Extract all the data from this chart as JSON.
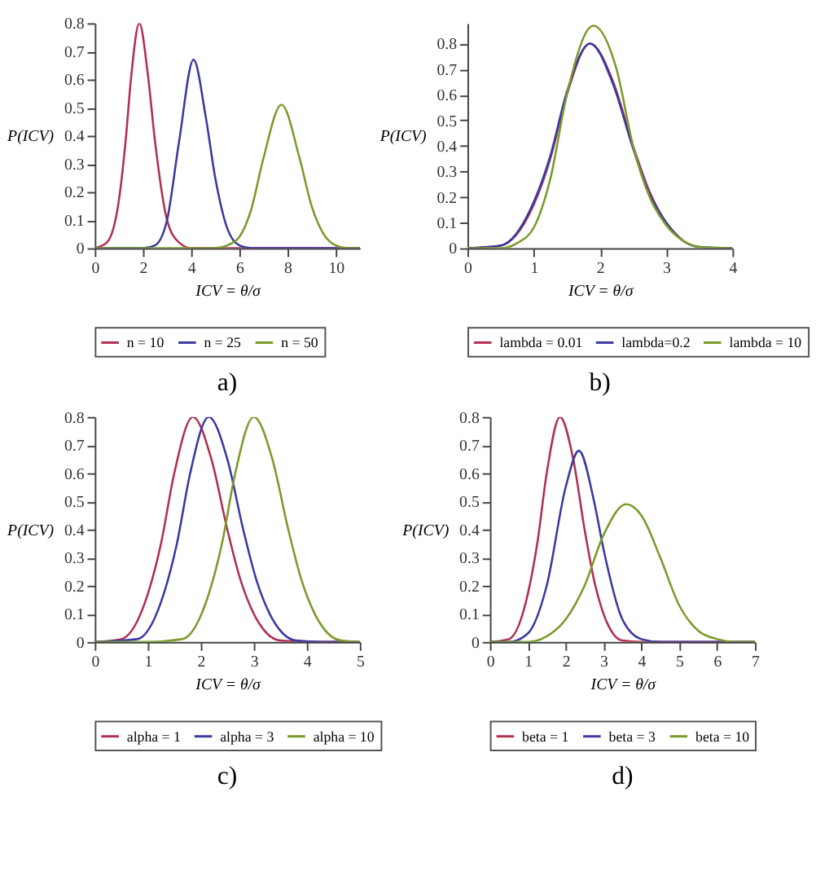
{
  "chart_data": [
    {
      "type": "line",
      "title": "a)",
      "xlabel": "ICV = θ/σ",
      "ylabel": "P(ICV)",
      "xlim": [
        0,
        11
      ],
      "xticks": [
        0,
        2,
        4,
        6,
        8,
        10
      ],
      "ylim": [
        0,
        0.8
      ],
      "yticks": [
        0,
        0.1,
        0.2,
        0.3,
        0.4,
        0.5,
        0.6,
        0.7,
        0.8
      ],
      "legend": "bottom",
      "grid": false,
      "marker": "none",
      "line_style": "solid",
      "series": [
        {
          "name": "n = 10",
          "color": "#b03050",
          "x": [
            0,
            0.5,
            1,
            1.3,
            1.5,
            1.85,
            2.2,
            2.5,
            3,
            3.5,
            4,
            11
          ],
          "values": [
            0,
            0.02,
            0.17,
            0.4,
            0.6,
            0.8,
            0.62,
            0.38,
            0.1,
            0.02,
            0,
            0
          ]
        },
        {
          "name": "n = 25",
          "color": "#3a3aa0",
          "x": [
            0,
            2,
            2.5,
            3,
            3.5,
            4.1,
            4.6,
            5,
            5.5,
            6,
            6.5,
            11
          ],
          "values": [
            0,
            0,
            0.01,
            0.1,
            0.38,
            0.67,
            0.47,
            0.25,
            0.07,
            0.01,
            0,
            0
          ]
        },
        {
          "name": "n = 50",
          "color": "#7a9a2a",
          "x": [
            0,
            5,
            5.5,
            6,
            6.5,
            7,
            7.75,
            8.5,
            9,
            9.5,
            10,
            10.5,
            11
          ],
          "values": [
            0,
            0,
            0.01,
            0.04,
            0.14,
            0.32,
            0.51,
            0.32,
            0.15,
            0.05,
            0.01,
            0,
            0
          ]
        }
      ]
    },
    {
      "type": "line",
      "title": "b)",
      "xlabel": "ICV = θ/σ",
      "ylabel": "P(ICV)",
      "xlim": [
        0,
        4
      ],
      "xticks": [
        0,
        1,
        2,
        3,
        4
      ],
      "ylim": [
        0,
        0.88
      ],
      "yticks": [
        0,
        0.1,
        0.2,
        0.3,
        0.4,
        0.5,
        0.6,
        0.7,
        0.8
      ],
      "legend": "bottom",
      "grid": false,
      "marker": "none",
      "line_style": "solid",
      "series": [
        {
          "name": "lambda = 0.01",
          "color": "#b03050",
          "x": [
            0,
            0.5,
            1,
            1.25,
            1.5,
            1.85,
            2.2,
            2.5,
            2.75,
            3,
            3.25
          ],
          "values": [
            0,
            0.01,
            0.17,
            0.35,
            0.6,
            0.8,
            0.65,
            0.4,
            0.22,
            0.1,
            0.03
          ]
        },
        {
          "name": "lambda=0.2",
          "color": "#3a3aa0",
          "x": [
            0,
            0.5,
            1,
            1.25,
            1.5,
            1.85,
            2.2,
            2.5,
            2.75,
            3,
            3.25,
            3.5,
            4
          ],
          "values": [
            0,
            0.01,
            0.18,
            0.36,
            0.61,
            0.8,
            0.64,
            0.39,
            0.21,
            0.1,
            0.03,
            0.005,
            0
          ]
        },
        {
          "name": "lambda = 10",
          "color": "#7a9a2a",
          "x": [
            0,
            0.5,
            0.75,
            1,
            1.25,
            1.5,
            1.9,
            2.25,
            2.5,
            2.75,
            3,
            3.25,
            3.5,
            4
          ],
          "values": [
            0,
            0,
            0.02,
            0.08,
            0.27,
            0.6,
            0.87,
            0.7,
            0.4,
            0.2,
            0.09,
            0.03,
            0.005,
            0
          ]
        }
      ]
    },
    {
      "type": "line",
      "title": "c)",
      "xlabel": "ICV = θ/σ",
      "ylabel": "P(ICV)",
      "xlim": [
        0,
        5
      ],
      "xticks": [
        0,
        1,
        2,
        3,
        4,
        5
      ],
      "ylim": [
        0,
        0.8
      ],
      "yticks": [
        0,
        0.1,
        0.2,
        0.3,
        0.4,
        0.5,
        0.6,
        0.7,
        0.8
      ],
      "legend": "bottom",
      "grid": false,
      "marker": "none",
      "line_style": "solid",
      "series": [
        {
          "name": "alpha = 1",
          "color": "#b03050",
          "x": [
            0,
            0.5,
            1,
            1.25,
            1.5,
            1.85,
            2.2,
            2.5,
            2.75,
            3,
            3.25,
            3.5,
            4,
            5
          ],
          "values": [
            0,
            0.01,
            0.17,
            0.35,
            0.6,
            0.8,
            0.65,
            0.4,
            0.22,
            0.1,
            0.03,
            0.005,
            0,
            0
          ]
        },
        {
          "name": "alpha = 3",
          "color": "#3a3aa0",
          "x": [
            0,
            0.8,
            1.3,
            1.55,
            1.8,
            2.15,
            2.5,
            2.8,
            3.05,
            3.3,
            3.55,
            3.8,
            4.3,
            5
          ],
          "values": [
            0,
            0.01,
            0.17,
            0.35,
            0.6,
            0.8,
            0.65,
            0.4,
            0.22,
            0.1,
            0.03,
            0.005,
            0,
            0
          ]
        },
        {
          "name": "alpha = 10",
          "color": "#7a9a2a",
          "x": [
            0,
            1,
            1.65,
            2.15,
            2.4,
            2.65,
            3,
            3.35,
            3.65,
            3.9,
            4.15,
            4.4,
            4.65,
            5
          ],
          "values": [
            0,
            0,
            0.01,
            0.17,
            0.35,
            0.6,
            0.8,
            0.65,
            0.4,
            0.22,
            0.1,
            0.03,
            0.005,
            0
          ]
        }
      ]
    },
    {
      "type": "line",
      "title": "d)",
      "xlabel": "ICV = θ/σ",
      "ylabel": "P(ICV)",
      "xlim": [
        0,
        7
      ],
      "xticks": [
        0,
        1,
        2,
        3,
        4,
        5,
        6,
        7
      ],
      "ylim": [
        0,
        0.8
      ],
      "yticks": [
        0,
        0.1,
        0.2,
        0.3,
        0.4,
        0.5,
        0.6,
        0.7,
        0.8
      ],
      "legend": "bottom",
      "grid": false,
      "marker": "none",
      "line_style": "solid",
      "series": [
        {
          "name": "beta = 1",
          "color": "#b03050",
          "x": [
            0,
            0.5,
            1,
            1.25,
            1.5,
            1.85,
            2.2,
            2.5,
            2.75,
            3,
            3.25,
            3.5,
            4,
            7
          ],
          "values": [
            0,
            0.01,
            0.17,
            0.35,
            0.6,
            0.8,
            0.65,
            0.4,
            0.22,
            0.1,
            0.03,
            0.005,
            0,
            0
          ]
        },
        {
          "name": "beta = 3",
          "color": "#3a3aa0",
          "x": [
            0,
            0.5,
            1,
            1.5,
            2,
            2.35,
            2.75,
            3,
            3.5,
            4,
            4.5,
            7
          ],
          "values": [
            0,
            0,
            0.03,
            0.2,
            0.55,
            0.68,
            0.5,
            0.33,
            0.08,
            0.01,
            0,
            0
          ]
        },
        {
          "name": "beta = 10",
          "color": "#7a9a2a",
          "x": [
            0,
            1,
            1.5,
            2,
            2.5,
            3,
            3.6,
            4,
            4.5,
            5,
            5.5,
            6,
            6.5,
            7
          ],
          "values": [
            0,
            0,
            0.02,
            0.08,
            0.2,
            0.38,
            0.49,
            0.45,
            0.3,
            0.13,
            0.04,
            0.01,
            0,
            0
          ]
        }
      ]
    }
  ]
}
